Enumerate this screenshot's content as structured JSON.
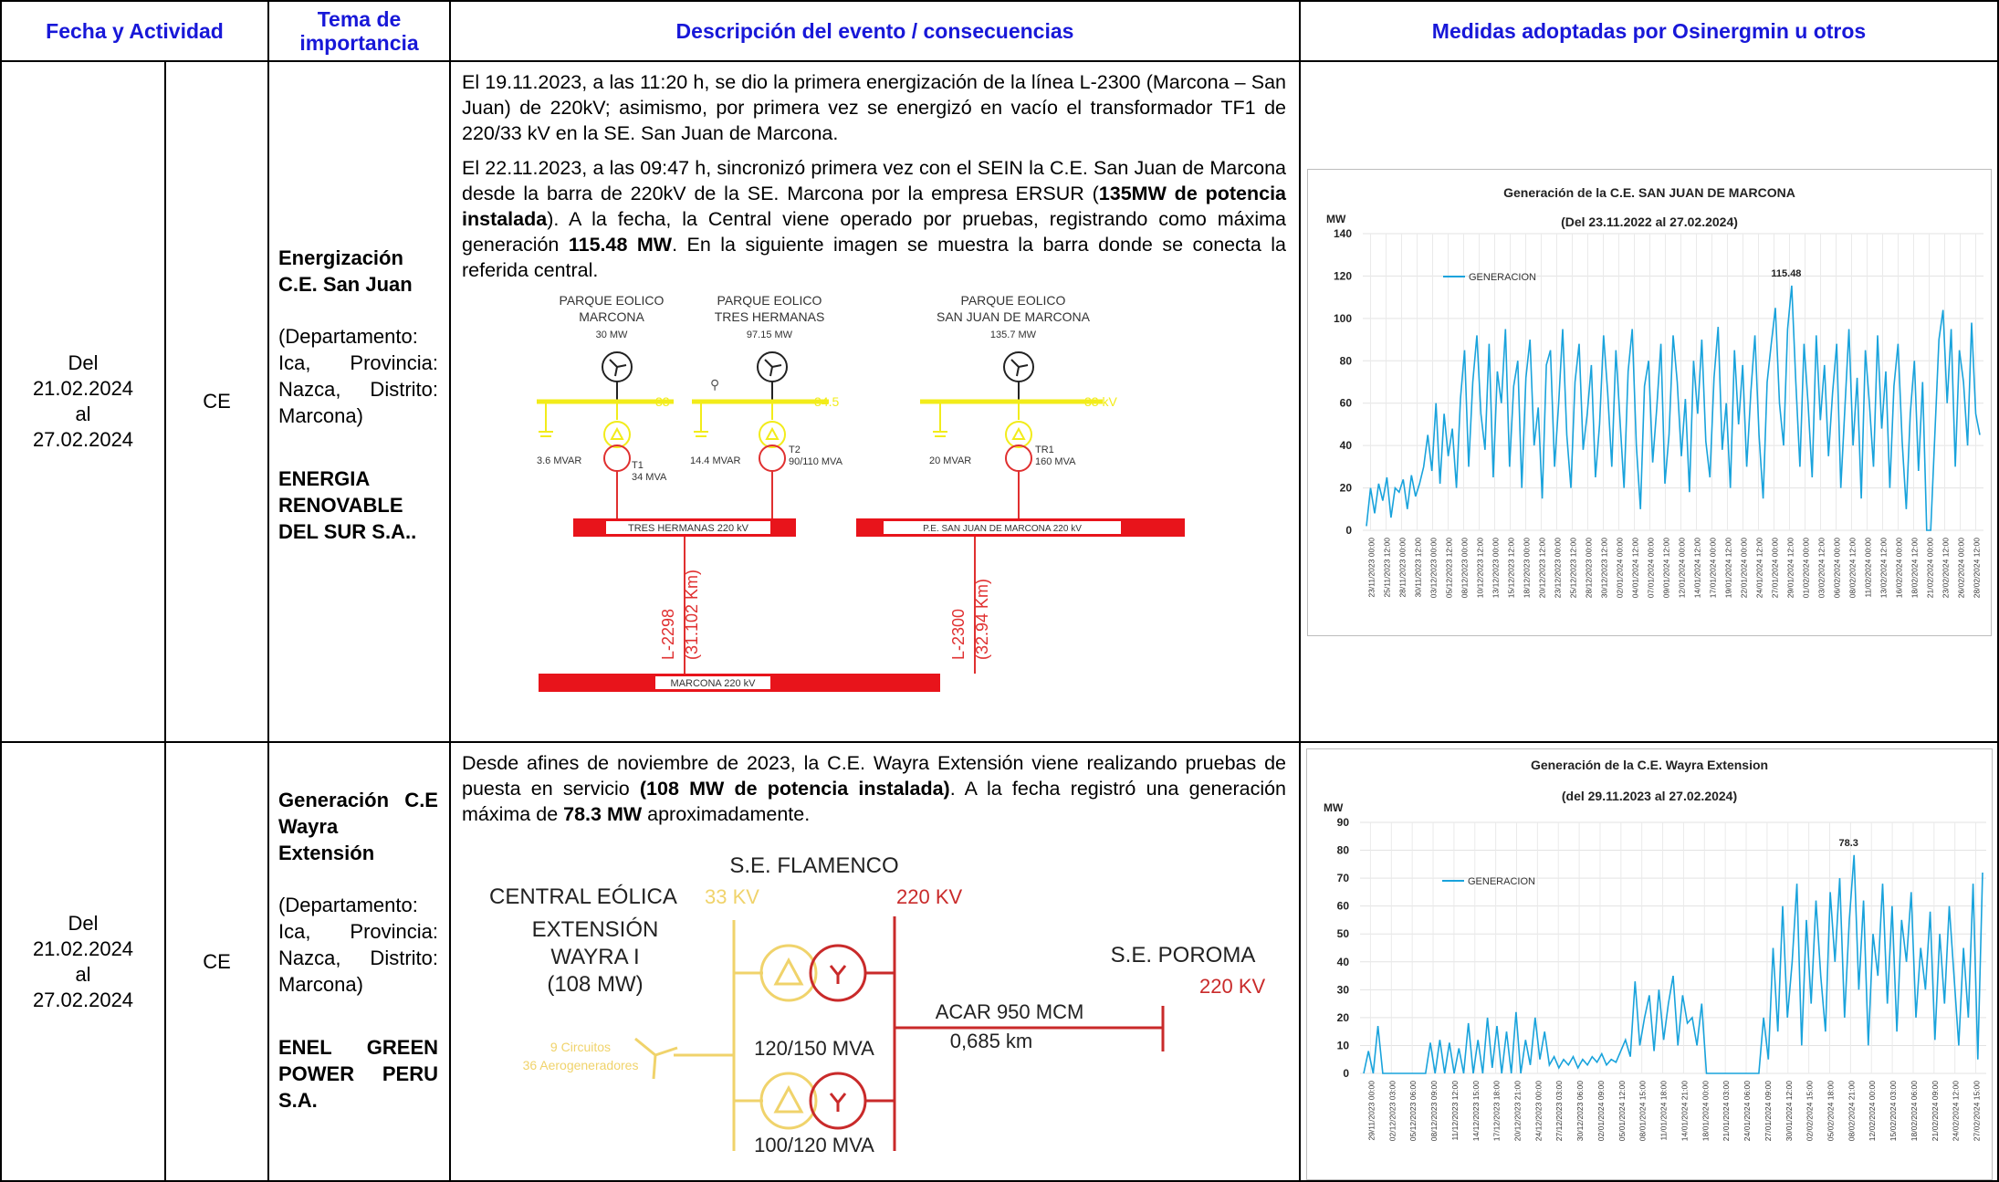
{
  "headers": {
    "fecha_actividad": "Fecha y Actividad",
    "tema_line1": "Tema de",
    "tema_line2": "importancia",
    "descripcion": "Descripción del evento / consecuencias",
    "medidas": "Medidas adoptadas por Osinergmin u otros"
  },
  "rows": [
    {
      "date": {
        "l1": "Del",
        "l2": "21.02.2024",
        "l3": "al",
        "l4": "27.02.2024"
      },
      "type": "CE",
      "topic": {
        "title": "Energización C.E. San Juan",
        "location": "(Departamento: Ica, Provincia: Nazca, Distrito: Marcona)",
        "company": "ENERGIA RENOVABLE DEL SUR S.A.."
      },
      "desc": {
        "p1_a": "El 19.11.2023, ",
        "p1_b": "a las 11:20 h",
        "p1_c": ", se dio la primera energización de la línea L-2300 (Marcona – San Juan) de 220kV; asimismo, por primera vez se energizó en vacío el transformador TF1 de 220/33 kV en la SE. San Juan de Marcona.",
        "p2_a": "El 22.11.2023, ",
        "p2_b": "a las 09:47 h",
        "p2_c": ", sincronizó primera vez con el SEIN la C.E. San Juan de Marcona desde la barra de 220kV de la SE. Marcona por la empresa ERSUR (",
        "p2_d": "135MW de potencia instalada",
        "p2_e": "). A la fecha, la Central viene operado por pruebas, registrando como máxima generación ",
        "p2_f": "115.48 MW",
        "p2_g": ". En la siguiente imagen se muestra la barra donde se conecta la referida central."
      },
      "diagram": {
        "p1_l1": "PARQUE EOLICO",
        "p1_l2": "MARCONA",
        "p1_mw": "30 MW",
        "p2_l1": "PARQUE EOLICO",
        "p2_l2": "TRES HERMANAS",
        "p2_mw": "97.15 MW",
        "p3_l1": "PARQUE EOLICO",
        "p3_l2": "SAN JUAN DE MARCONA",
        "p3_mw": "135.7 MW",
        "bus1_kv": "33",
        "bus2_kv": "34.5",
        "bus3_kv": "33 kV",
        "cap1": "3.6 MVAR",
        "cap2": "14.4 MVAR",
        "cap3": "20 MVAR",
        "t1_name": "T1",
        "t1_mva": "34 MVA",
        "t2_name": "T2",
        "t2_mva": "90/110 MVA",
        "t3_name": "TR1",
        "t3_mva": "160 MVA",
        "bar_tres": "TRES  HERMANAS  220 kV",
        "bar_sj": "P.E. SAN JUAN DE MARCONA 220 kV",
        "bar_marcona": "MARCONA   220 kV",
        "line1_name": "L-2298",
        "line1_len": "(31.102 Km)",
        "line2_name": "L-2300",
        "line2_len": "(32.94 Km)"
      },
      "chart_data": {
        "type": "line",
        "title": "Generación de la C.E. SAN JUAN DE MARCONA",
        "subtitle": "(Del 23.11.2022 al 27.02.2024)",
        "ylabel": "MW",
        "ylim": [
          0,
          140
        ],
        "yticks": [
          0,
          20,
          40,
          60,
          80,
          100,
          120,
          140
        ],
        "legend": "GENERACION",
        "legend_position": "top-left",
        "annotation": {
          "label": "115.48",
          "value": 115.48
        },
        "color": "#19a3dc",
        "grid": true,
        "x_ticks": [
          "23/11/2023 00:00",
          "25/11/2023 12:00",
          "28/11/2023 00:00",
          "30/11/2023 12:00",
          "03/12/2023 00:00",
          "05/12/2023 12:00",
          "08/12/2023 00:00",
          "10/12/2023 12:00",
          "13/12/2023 00:00",
          "15/12/2023 12:00",
          "18/12/2023 00:00",
          "20/12/2023 12:00",
          "23/12/2023 00:00",
          "25/12/2023 12:00",
          "28/12/2023 00:00",
          "30/12/2023 12:00",
          "02/01/2024 00:00",
          "04/01/2024 12:00",
          "07/01/2024 00:00",
          "09/01/2024 12:00",
          "12/01/2024 00:00",
          "14/01/2024 12:00",
          "17/01/2024 00:00",
          "19/01/2024 12:00",
          "22/01/2024 00:00",
          "24/01/2024 12:00",
          "27/01/2024 00:00",
          "29/01/2024 12:00",
          "01/02/2024 00:00",
          "03/02/2024 12:00",
          "06/02/2024 00:00",
          "08/02/2024 12:00",
          "11/02/2024 00:00",
          "13/02/2024 12:00",
          "16/02/2024 00:00",
          "18/02/2024 12:00",
          "21/02/2024 00:00",
          "23/02/2024 12:00",
          "26/02/2024 00:00",
          "28/02/2024 12:00"
        ],
        "series": [
          {
            "values": [
              2,
              20,
              8,
              22,
              14,
              25,
              6,
              20,
              18,
              24,
              10,
              26,
              16,
              22,
              30,
              45,
              28,
              60,
              22,
              55,
              35,
              48,
              20,
              62,
              85,
              30,
              70,
              92,
              55,
              38,
              88,
              25,
              75,
              60,
              95,
              30,
              68,
              80,
              20,
              72,
              90,
              40,
              58,
              15,
              78,
              85,
              30,
              60,
              95,
              45,
              20,
              70,
              88,
              38,
              55,
              78,
              25,
              50,
              92,
              65,
              30,
              85,
              52,
              20,
              75,
              95,
              40,
              10,
              68,
              80,
              32,
              58,
              88,
              22,
              45,
              92,
              70,
              35,
              62,
              18,
              80,
              55,
              90,
              42,
              25,
              72,
              96,
              38,
              60,
              20,
              85,
              50,
              78,
              30,
              65,
              92,
              45,
              15,
              70,
              88,
              105,
              60,
              40,
              95,
              115.48,
              70,
              30,
              88,
              60,
              25,
              92,
              52,
              78,
              35,
              65,
              88,
              20,
              58,
              95,
              40,
              72,
              15,
              85,
              60,
              30,
              92,
              48,
              75,
              20,
              68,
              88,
              42,
              10,
              55,
              80,
              28,
              70,
              0,
              0,
              45,
              90,
              104,
              60,
              95,
              30,
              85,
              70,
              40,
              98,
              55,
              45
            ]
          }
        ]
      }
    },
    {
      "date": {
        "l1": "Del",
        "l2": "21.02.2024",
        "l3": "al",
        "l4": "27.02.2024"
      },
      "type": "CE",
      "topic": {
        "title": "Generación C.E Wayra Extensión",
        "location": "(Departamento: Ica, Provincia: Nazca, Distrito: Marcona)",
        "company": "ENEL GREEN POWER PERU S.A."
      },
      "desc": {
        "p1_a": "Desde afines de noviembre de 2023, la C.E. Wayra Extensión viene realizando pruebas de puesta en servicio ",
        "p1_b": "(108 MW de potencia instalada)",
        "p1_c": ".  A la fecha registró una generación máxima de ",
        "p1_d": "78.3 MW",
        "p1_e": " aproximadamente."
      },
      "diagram": {
        "central_l1": "CENTRAL EÓLICA",
        "central_l2": "EXTENSIÓN",
        "central_l3": "WAYRA I",
        "central_l4": "(108 MW)",
        "kv33": "33 KV",
        "se_flamenco": "S.E. FLAMENCO",
        "kv220a": "220 KV",
        "se_poroma": "S.E. POROMA",
        "kv220b": "220 KV",
        "circuits": "9 Circuitos",
        "aerogen": "36 Aerogeneradores",
        "mva1": "120/150 MVA",
        "mva2": "100/120 MVA",
        "cable": "ACAR 950 MCM",
        "length": "0,685 km"
      },
      "chart_data": {
        "type": "line",
        "title": "Generación de la C.E. Wayra Extension",
        "subtitle": "(del 29.11.2023 al 27.02.2024)",
        "ylabel": "MW",
        "ylim": [
          0,
          90
        ],
        "yticks": [
          0,
          10,
          20,
          30,
          40,
          50,
          60,
          70,
          80,
          90
        ],
        "legend": "GENERACION",
        "legend_position": "top-left",
        "annotation": {
          "label": "78.3",
          "value": 78.3
        },
        "color": "#19a3dc",
        "grid": true,
        "x_ticks": [
          "29/11/2023 00:00",
          "02/12/2023 03:00",
          "05/12/2023 06:00",
          "08/12/2023 09:00",
          "11/12/2023 12:00",
          "14/12/2023 15:00",
          "17/12/2023 18:00",
          "20/12/2023 21:00",
          "24/12/2023 00:00",
          "27/12/2023 03:00",
          "30/12/2023 06:00",
          "02/01/2024 09:00",
          "05/01/2024 12:00",
          "08/01/2024 15:00",
          "11/01/2024 18:00",
          "14/01/2024 21:00",
          "18/01/2024 00:00",
          "21/01/2024 03:00",
          "24/01/2024 06:00",
          "27/01/2024 09:00",
          "30/01/2024 12:00",
          "02/02/2024 15:00",
          "05/02/2024 18:00",
          "08/02/2024 21:00",
          "12/02/2024 00:00",
          "15/02/2024 03:00",
          "18/02/2024 06:00",
          "21/02/2024 09:00",
          "24/02/2024 12:00",
          "27/02/2024 15:00"
        ],
        "series": [
          {
            "values": [
              0,
              8,
              0,
              17,
              0,
              0,
              0,
              0,
              0,
              0,
              0,
              0,
              0,
              0,
              11,
              0,
              12,
              0,
              11,
              0,
              9,
              0,
              18,
              0,
              12,
              0,
              20,
              2,
              17,
              0,
              15,
              0,
              22,
              0,
              12,
              3,
              20,
              5,
              15,
              3,
              6,
              2,
              5,
              3,
              6,
              2,
              5,
              3,
              6,
              4,
              7,
              3,
              5,
              4,
              8,
              12,
              6,
              33,
              10,
              20,
              28,
              8,
              30,
              12,
              25,
              35,
              10,
              28,
              18,
              20,
              10,
              25,
              0,
              0,
              0,
              0,
              0,
              0,
              0,
              0,
              0,
              0,
              0,
              0,
              20,
              5,
              45,
              15,
              60,
              20,
              40,
              68,
              10,
              55,
              25,
              62,
              35,
              15,
              65,
              40,
              70,
              20,
              55,
              78.3,
              30,
              62,
              10,
              50,
              35,
              68,
              25,
              60,
              15,
              55,
              40,
              65,
              20,
              45,
              30,
              58,
              12,
              50,
              25,
              60,
              35,
              10,
              45,
              20,
              68,
              5,
              72
            ]
          }
        ]
      }
    }
  ]
}
